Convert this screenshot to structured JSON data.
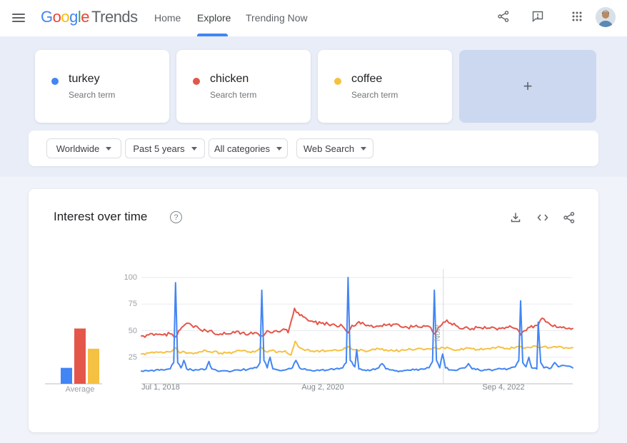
{
  "header": {
    "logo": {
      "letters": [
        {
          "ch": "G",
          "color": "#4285F4"
        },
        {
          "ch": "o",
          "color": "#EA4335"
        },
        {
          "ch": "o",
          "color": "#FBBC05"
        },
        {
          "ch": "g",
          "color": "#4285F4"
        },
        {
          "ch": "l",
          "color": "#34A853"
        },
        {
          "ch": "e",
          "color": "#EA4335"
        }
      ],
      "suffix": "Trends"
    },
    "nav": [
      {
        "label": "Home",
        "active": false
      },
      {
        "label": "Explore",
        "active": true
      },
      {
        "label": "Trending Now",
        "active": false
      }
    ]
  },
  "compare": {
    "terms": [
      {
        "term": "turkey",
        "type": "Search term",
        "color": "#4285f4"
      },
      {
        "term": "chicken",
        "type": "Search term",
        "color": "#e4564a"
      },
      {
        "term": "coffee",
        "type": "Search term",
        "color": "#f5c142"
      }
    ],
    "add_label": "+"
  },
  "filters": [
    {
      "label": "Worldwide"
    },
    {
      "label": "Past 5 years"
    },
    {
      "label": "All categories"
    },
    {
      "label": "Web Search"
    }
  ],
  "icons": {
    "help_glyph": "?"
  },
  "colors": {
    "accent": "#4285f4",
    "hero_bg": "#e9edf7",
    "page_bg": "#f0f3f9",
    "add_card_bg": "#ccd7f0"
  },
  "chart_data": {
    "type": "line",
    "title": "Interest over time",
    "x_unit": "months since Jul 2018 (weekly data, 5 years)",
    "x_range": [
      0,
      60
    ],
    "ylim": [
      0,
      100
    ],
    "grid": true,
    "legend_position": "none",
    "y_ticks": [
      100,
      75,
      50,
      25
    ],
    "x_tick_labels": [
      {
        "label": "Jul 1, 2018",
        "pos": 0.0
      },
      {
        "label": "Aug 2, 2020",
        "pos": 0.42
      },
      {
        "label": "Sep 4, 2022",
        "pos": 0.84
      }
    ],
    "note_marker": {
      "label": "Note",
      "pos": 0.7
    },
    "average_bars": {
      "label": "Average",
      "values": [
        {
          "name": "turkey",
          "value": 15
        },
        {
          "name": "chicken",
          "value": 52
        },
        {
          "name": "coffee",
          "value": 33
        }
      ]
    },
    "series": [
      {
        "name": "turkey",
        "color": "#4285f4",
        "points": [
          [
            0,
            12
          ],
          [
            1,
            12
          ],
          [
            2,
            13
          ],
          [
            3,
            13
          ],
          [
            4,
            14
          ],
          [
            4.5,
            20
          ],
          [
            4.75,
            95
          ],
          [
            5.05,
            20
          ],
          [
            5.5,
            15
          ],
          [
            5.9,
            22
          ],
          [
            6.3,
            14
          ],
          [
            7,
            13
          ],
          [
            8,
            13
          ],
          [
            9,
            14
          ],
          [
            9.4,
            21
          ],
          [
            9.8,
            14
          ],
          [
            11,
            12
          ],
          [
            12,
            12
          ],
          [
            13,
            13
          ],
          [
            14,
            13
          ],
          [
            15,
            14
          ],
          [
            16,
            15
          ],
          [
            16.5,
            20
          ],
          [
            16.75,
            88
          ],
          [
            17.05,
            22
          ],
          [
            17.5,
            15
          ],
          [
            17.9,
            25
          ],
          [
            18.3,
            14
          ],
          [
            19,
            13
          ],
          [
            20,
            13
          ],
          [
            21,
            15
          ],
          [
            21.5,
            22
          ],
          [
            22,
            15
          ],
          [
            23,
            13
          ],
          [
            24,
            12
          ],
          [
            25,
            13
          ],
          [
            26,
            13
          ],
          [
            27,
            14
          ],
          [
            28,
            15
          ],
          [
            28.5,
            20
          ],
          [
            28.75,
            100
          ],
          [
            29.05,
            22
          ],
          [
            29.7,
            16
          ],
          [
            29.95,
            32
          ],
          [
            30.25,
            14
          ],
          [
            31,
            13
          ],
          [
            32,
            13
          ],
          [
            33,
            15
          ],
          [
            33.5,
            19
          ],
          [
            34,
            14
          ],
          [
            35,
            13
          ],
          [
            36,
            12
          ],
          [
            37,
            13
          ],
          [
            38,
            13
          ],
          [
            39,
            14
          ],
          [
            40,
            15
          ],
          [
            40.5,
            21
          ],
          [
            40.75,
            88
          ],
          [
            41.05,
            22
          ],
          [
            41.5,
            15
          ],
          [
            41.9,
            28
          ],
          [
            42.3,
            15
          ],
          [
            43,
            13
          ],
          [
            44,
            13
          ],
          [
            45,
            15
          ],
          [
            45.5,
            19
          ],
          [
            46,
            14
          ],
          [
            47,
            13
          ],
          [
            48,
            13
          ],
          [
            49,
            13
          ],
          [
            50,
            14
          ],
          [
            51,
            14
          ],
          [
            52,
            16
          ],
          [
            52.5,
            22
          ],
          [
            52.75,
            78
          ],
          [
            53.05,
            20
          ],
          [
            53.5,
            16
          ],
          [
            53.9,
            25
          ],
          [
            54.3,
            15
          ],
          [
            55,
            14
          ],
          [
            55.2,
            58
          ],
          [
            55.55,
            20
          ],
          [
            56,
            15
          ],
          [
            57,
            15
          ],
          [
            57.5,
            20
          ],
          [
            58,
            16
          ],
          [
            59,
            17
          ],
          [
            60,
            15
          ]
        ]
      },
      {
        "name": "chicken",
        "color": "#e4564a",
        "points": [
          [
            0,
            45
          ],
          [
            1,
            46
          ],
          [
            2,
            47
          ],
          [
            3,
            46
          ],
          [
            4,
            47
          ],
          [
            4.75,
            44
          ],
          [
            5.2,
            50
          ],
          [
            5.8,
            54
          ],
          [
            6.3,
            57
          ],
          [
            7,
            55
          ],
          [
            8,
            52
          ],
          [
            9,
            50
          ],
          [
            10,
            48
          ],
          [
            11,
            47
          ],
          [
            12,
            47
          ],
          [
            13,
            48
          ],
          [
            14,
            48
          ],
          [
            15,
            47
          ],
          [
            16,
            48
          ],
          [
            16.75,
            45
          ],
          [
            17.5,
            50
          ],
          [
            18,
            48
          ],
          [
            19,
            49
          ],
          [
            20,
            51
          ],
          [
            20.4,
            48
          ],
          [
            21.3,
            71
          ],
          [
            21.8,
            67
          ],
          [
            22.5,
            63
          ],
          [
            23,
            61
          ],
          [
            24,
            58
          ],
          [
            25,
            57
          ],
          [
            26,
            56
          ],
          [
            27,
            55
          ],
          [
            28,
            54
          ],
          [
            28.75,
            48
          ],
          [
            29.3,
            55
          ],
          [
            30,
            57
          ],
          [
            31,
            56
          ],
          [
            32,
            55
          ],
          [
            33,
            54
          ],
          [
            34,
            55
          ],
          [
            35,
            56
          ],
          [
            36,
            54
          ],
          [
            37,
            53
          ],
          [
            38,
            54
          ],
          [
            39,
            53
          ],
          [
            40,
            54
          ],
          [
            40.75,
            47
          ],
          [
            41.3,
            53
          ],
          [
            42,
            58
          ],
          [
            42.5,
            60
          ],
          [
            43,
            57
          ],
          [
            44,
            54
          ],
          [
            45,
            53
          ],
          [
            46,
            52
          ],
          [
            47,
            53
          ],
          [
            48,
            52
          ],
          [
            49,
            53
          ],
          [
            50,
            52
          ],
          [
            51,
            53
          ],
          [
            52,
            52
          ],
          [
            52.75,
            46
          ],
          [
            53.3,
            50
          ],
          [
            54,
            53
          ],
          [
            55,
            55
          ],
          [
            55.5,
            60
          ],
          [
            56,
            61
          ],
          [
            56.5,
            58
          ],
          [
            57,
            55
          ],
          [
            58,
            53
          ],
          [
            59,
            52
          ],
          [
            60,
            52
          ]
        ]
      },
      {
        "name": "coffee",
        "color": "#f5c142",
        "points": [
          [
            0,
            28
          ],
          [
            1,
            29
          ],
          [
            2,
            30
          ],
          [
            3,
            29
          ],
          [
            4,
            30
          ],
          [
            4.75,
            34
          ],
          [
            5.3,
            29
          ],
          [
            6,
            30
          ],
          [
            7,
            29
          ],
          [
            8,
            30
          ],
          [
            9,
            31
          ],
          [
            10,
            30
          ],
          [
            11,
            29
          ],
          [
            12,
            29
          ],
          [
            13,
            30
          ],
          [
            14,
            31
          ],
          [
            15,
            30
          ],
          [
            16,
            31
          ],
          [
            16.75,
            34
          ],
          [
            17.4,
            30
          ],
          [
            18,
            31
          ],
          [
            19,
            30
          ],
          [
            20,
            31
          ],
          [
            20.8,
            27
          ],
          [
            21.4,
            40
          ],
          [
            22,
            34
          ],
          [
            23,
            32
          ],
          [
            24,
            30
          ],
          [
            25,
            31
          ],
          [
            26,
            31
          ],
          [
            27,
            32
          ],
          [
            28,
            32
          ],
          [
            28.75,
            35
          ],
          [
            29.5,
            32
          ],
          [
            30,
            32
          ],
          [
            31,
            31
          ],
          [
            32,
            32
          ],
          [
            33,
            33
          ],
          [
            34,
            32
          ],
          [
            35,
            31
          ],
          [
            36,
            31
          ],
          [
            37,
            32
          ],
          [
            38,
            32
          ],
          [
            39,
            33
          ],
          [
            40,
            33
          ],
          [
            40.75,
            34
          ],
          [
            41.5,
            33
          ],
          [
            42,
            34
          ],
          [
            43,
            33
          ],
          [
            44,
            32
          ],
          [
            45,
            33
          ],
          [
            46,
            33
          ],
          [
            47,
            32
          ],
          [
            48,
            33
          ],
          [
            49,
            34
          ],
          [
            50,
            34
          ],
          [
            51,
            33
          ],
          [
            52,
            34
          ],
          [
            52.75,
            35
          ],
          [
            53.5,
            34
          ],
          [
            54,
            34
          ],
          [
            55,
            35
          ],
          [
            56,
            35
          ],
          [
            57,
            34
          ],
          [
            58,
            35
          ],
          [
            59,
            34
          ],
          [
            60,
            34
          ]
        ]
      }
    ]
  }
}
